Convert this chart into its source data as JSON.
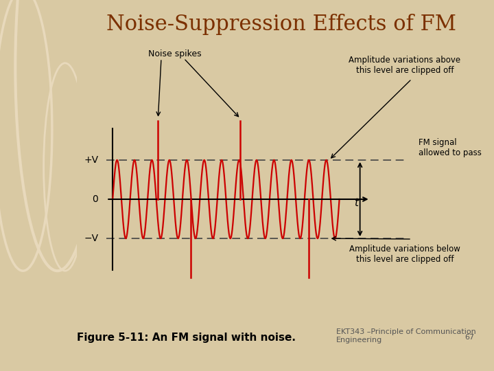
{
  "title": "Noise-Suppression Effects of FM",
  "title_color": "#7B3000",
  "title_fontsize": 22,
  "bg_outer": "#D9C9A3",
  "bg_inner": "#FFFFFF",
  "fig_caption": "Figure 5-11: An FM signal with noise.",
  "fig_caption_fontsize": 11,
  "credit_text": "EKT343 –Principle of Communication\nEngineering",
  "credit_page": "67",
  "credit_fontsize": 8,
  "signal_color": "#CC0000",
  "signal_amplitude": 1.0,
  "axis_color": "#000000",
  "dashed_color": "#444444",
  "label_plus_v": "+V",
  "label_zero": "0",
  "label_minus_v": "−V",
  "label_t": "t",
  "annotation_noise": "Noise spikes",
  "annotation_above": "Amplitude variations above\nthis level are clipped off",
  "annotation_fm": "FM signal\nallowed to pass",
  "annotation_below": "Amplitude variations below\nthis level are clipped off",
  "num_cycles": 13,
  "spike1_x": 2.2,
  "spike2_x": 6.2,
  "spike3_x": 9.5,
  "spike_height": 2.0,
  "signal_end_x": 11.0,
  "x_axis_end": 12.5,
  "x_lim_min": -1.8,
  "x_lim_max": 14.5,
  "y_lim_min": -2.8,
  "y_lim_max": 2.8
}
